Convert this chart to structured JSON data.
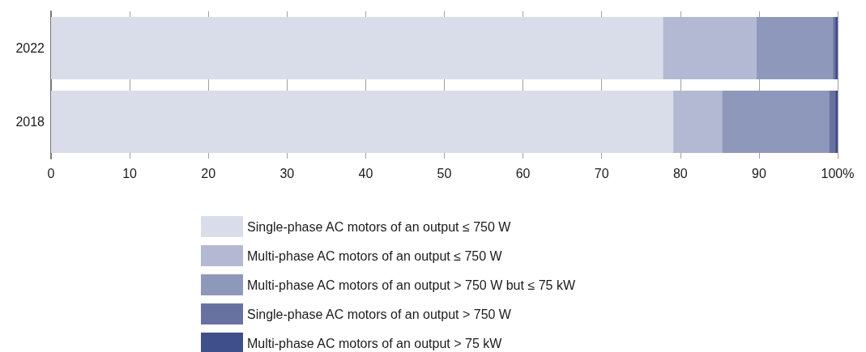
{
  "chart_data": {
    "type": "bar",
    "orientation": "horizontal",
    "stacked": true,
    "categories": [
      "2022",
      "2018"
    ],
    "series": [
      {
        "name": "Single-phase AC motors of an output ≤ 750 W",
        "color": "#d9dde9",
        "values": [
          77.8,
          79.1
        ]
      },
      {
        "name": "Multi-phase AC motors of an output ≤ 750 W",
        "color": "#b4b9d3",
        "values": [
          11.9,
          6.2
        ]
      },
      {
        "name": "Multi-phase AC motors of an output > 750 W but ≤ 75 kW",
        "color": "#8e98bb",
        "values": [
          9.7,
          13.6
        ]
      },
      {
        "name": "Single-phase AC motors of an output > 750 W",
        "color": "#6872a0",
        "values": [
          0.3,
          0.8
        ]
      },
      {
        "name": "Multi-phase AC motors of an output > 75 kW",
        "color": "#3f4f8c",
        "values": [
          0.3,
          0.3
        ]
      }
    ],
    "xlim": [
      0,
      100
    ],
    "xticks": [
      0,
      10,
      20,
      30,
      40,
      50,
      60,
      70,
      80,
      90,
      {
        "value": 100,
        "label": "100%"
      }
    ],
    "grid": "x",
    "legend": "bottom"
  }
}
